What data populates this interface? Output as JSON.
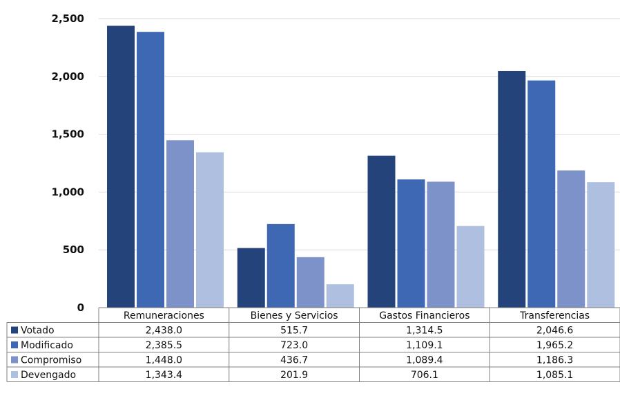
{
  "chart_data": {
    "type": "bar",
    "categories": [
      "Remuneraciones",
      "Bienes y Servicios",
      "Gastos Financieros",
      "Transferencias"
    ],
    "series": [
      {
        "name": "Votado",
        "color": "#24437a",
        "values": [
          2438.0,
          515.7,
          1314.5,
          2046.6
        ],
        "labels": [
          "2,438.0",
          "515.7",
          "1,314.5",
          "2,046.6"
        ]
      },
      {
        "name": "Modificado",
        "color": "#3f68b4",
        "values": [
          2385.5,
          723.0,
          1109.1,
          1965.2
        ],
        "labels": [
          "2,385.5",
          "723.0",
          "1,109.1",
          "1,965.2"
        ]
      },
      {
        "name": "Compromiso",
        "color": "#7d92c8",
        "values": [
          1448.0,
          436.7,
          1089.4,
          1186.3
        ],
        "labels": [
          "1,448.0",
          "436.7",
          "1,089.4",
          "1,186.3"
        ]
      },
      {
        "name": "Devengado",
        "color": "#aebfe0",
        "values": [
          1343.4,
          201.9,
          706.1,
          1085.1
        ],
        "labels": [
          "1,343.4",
          "201.9",
          "706.1",
          "1,085.1"
        ]
      }
    ],
    "ylim": [
      0,
      2500
    ],
    "yticks": [
      0,
      500,
      1000,
      1500,
      2000,
      2500
    ],
    "ytick_labels": [
      "0",
      "500",
      "1,000",
      "1,500",
      "2,000",
      "2,500"
    ],
    "grid": true,
    "legend": "data-table"
  }
}
